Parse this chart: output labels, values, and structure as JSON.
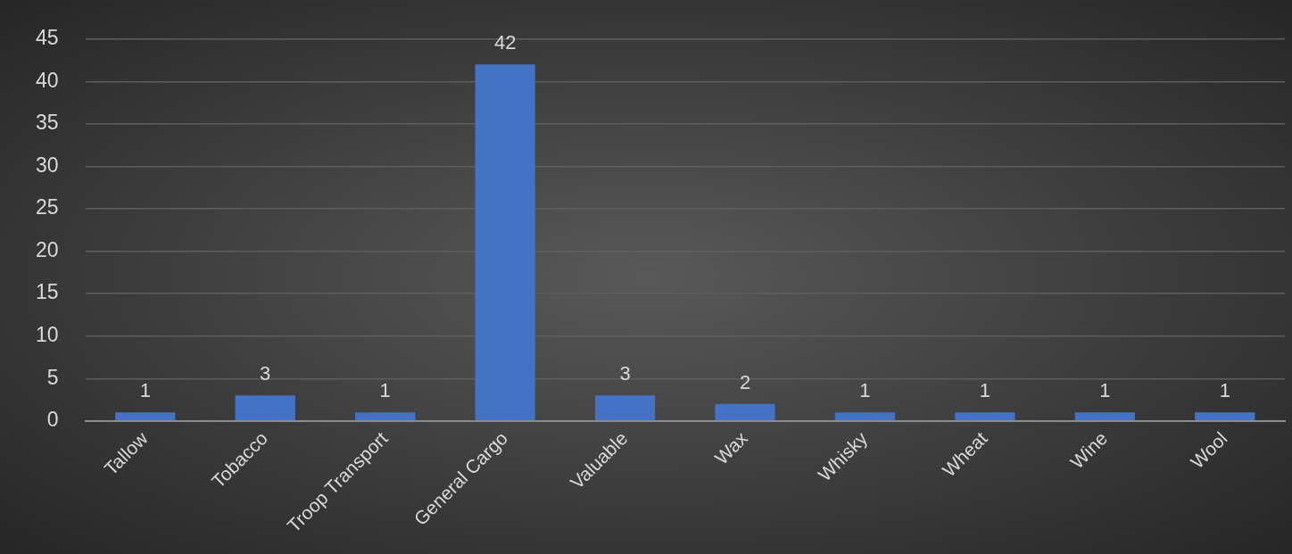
{
  "chart_data": {
    "type": "bar",
    "categories": [
      "Tallow",
      "Tobacco",
      "Troop Transport",
      "General Cargo",
      "Valuable",
      "Wax",
      "Whisky",
      "Wheat",
      "Wine",
      "Wool"
    ],
    "values": [
      1,
      3,
      1,
      42,
      3,
      2,
      1,
      1,
      1,
      1
    ],
    "color": "#4472c4",
    "ylim": [
      0,
      45
    ],
    "yticks": [
      0,
      5,
      10,
      15,
      20,
      25,
      30,
      35,
      40,
      45
    ],
    "grid": "y",
    "data_labels": true,
    "legend": false
  }
}
